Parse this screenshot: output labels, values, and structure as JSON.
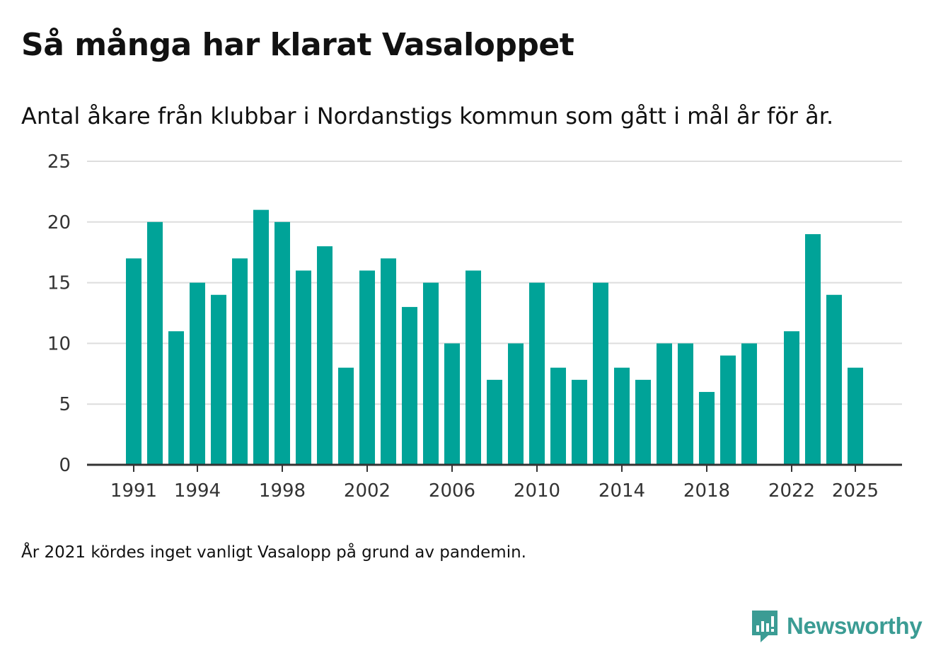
{
  "title": "Så många har klarat Vasaloppet",
  "subtitle": "Antal åkare från klubbar i Nordanstigs kommun som gått i mål år för år.",
  "footnote": "År 2021 kördes inget vanligt Vasalopp på grund av pandemin.",
  "brand": {
    "name": "Newsworthy",
    "icon": "newsworthy-logo-icon",
    "color": "#3b9c94"
  },
  "colors": {
    "bar": "#00a398",
    "grid": "#dddddd",
    "axis": "#333333"
  },
  "chart_data": {
    "type": "bar",
    "title": "Så många har klarat Vasaloppet",
    "xlabel": "",
    "ylabel": "",
    "ylim": [
      0,
      25
    ],
    "yticks": [
      0,
      5,
      10,
      15,
      20,
      25
    ],
    "xticks": [
      1991,
      1994,
      1998,
      2002,
      2006,
      2010,
      2014,
      2018,
      2022,
      2025
    ],
    "grid": true,
    "categories": [
      1991,
      1992,
      1993,
      1994,
      1995,
      1996,
      1997,
      1998,
      1999,
      2000,
      2001,
      2002,
      2003,
      2004,
      2005,
      2006,
      2007,
      2008,
      2009,
      2010,
      2011,
      2012,
      2013,
      2014,
      2015,
      2016,
      2017,
      2018,
      2019,
      2020,
      2021,
      2022,
      2023,
      2024,
      2025
    ],
    "values": [
      17,
      20,
      11,
      15,
      14,
      17,
      21,
      20,
      16,
      18,
      8,
      16,
      17,
      13,
      15,
      10,
      16,
      7,
      10,
      15,
      8,
      7,
      15,
      8,
      7,
      10,
      10,
      6,
      9,
      10,
      null,
      11,
      19,
      14,
      8
    ]
  }
}
